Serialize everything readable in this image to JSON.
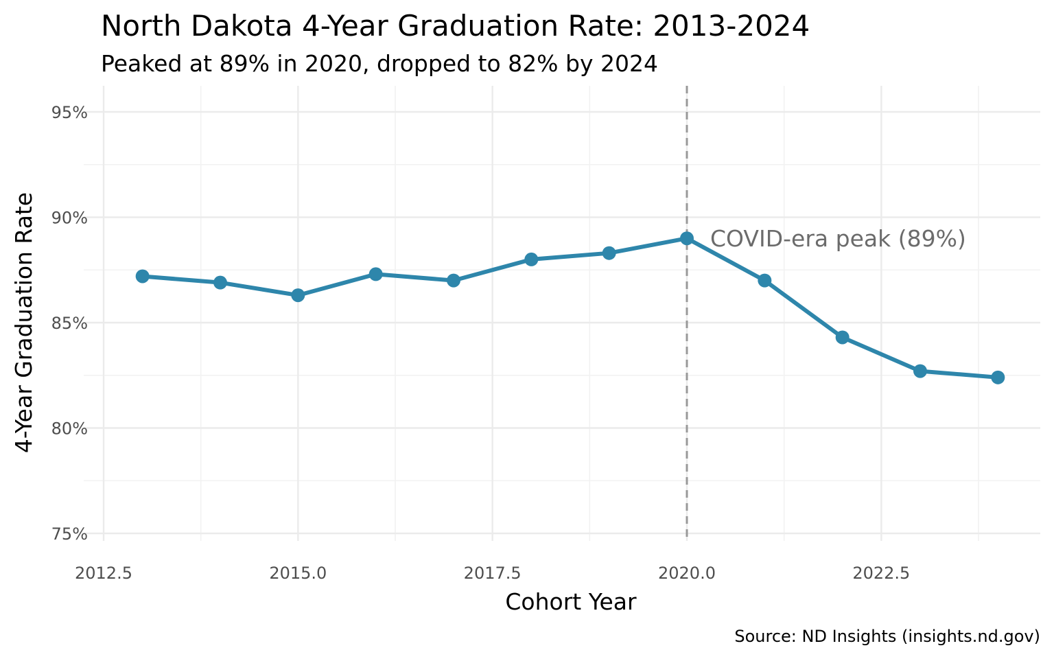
{
  "chart_data": {
    "type": "line",
    "title": "North Dakota 4-Year Graduation Rate: 2013-2024",
    "subtitle": "Peaked at 89% in 2020, dropped to 82% by 2024",
    "xlabel": "Cohort Year",
    "ylabel": "4-Year Graduation Rate",
    "caption": "Source: ND Insights (insights.nd.gov)",
    "xlim": [
      2012.5,
      2024.5
    ],
    "ylim": [
      74,
      96
    ],
    "x_ticks": [
      2012.5,
      2015.0,
      2017.5,
      2020.0,
      2022.5
    ],
    "x_tick_labels": [
      "2012.5",
      "2015.0",
      "2017.5",
      "2020.0",
      "2022.5"
    ],
    "y_ticks": [
      75,
      80,
      85,
      90,
      95
    ],
    "y_tick_labels": [
      "75%",
      "80%",
      "85%",
      "90%",
      "95%"
    ],
    "grid": true,
    "series": [
      {
        "color": "#2e86ab",
        "x": [
          2013,
          2014,
          2015,
          2016,
          2017,
          2018,
          2019,
          2020,
          2021,
          2022,
          2023,
          2024
        ],
        "y": [
          87.2,
          86.9,
          86.3,
          87.3,
          87.0,
          88.0,
          88.3,
          89.0,
          87.0,
          84.3,
          82.7,
          82.4
        ]
      }
    ],
    "reference_line": {
      "x": 2020,
      "style": "dashed",
      "color": "#999999"
    },
    "annotation": {
      "text": "COVID-era peak (89%)",
      "x": 2020.3,
      "y": 89
    }
  }
}
